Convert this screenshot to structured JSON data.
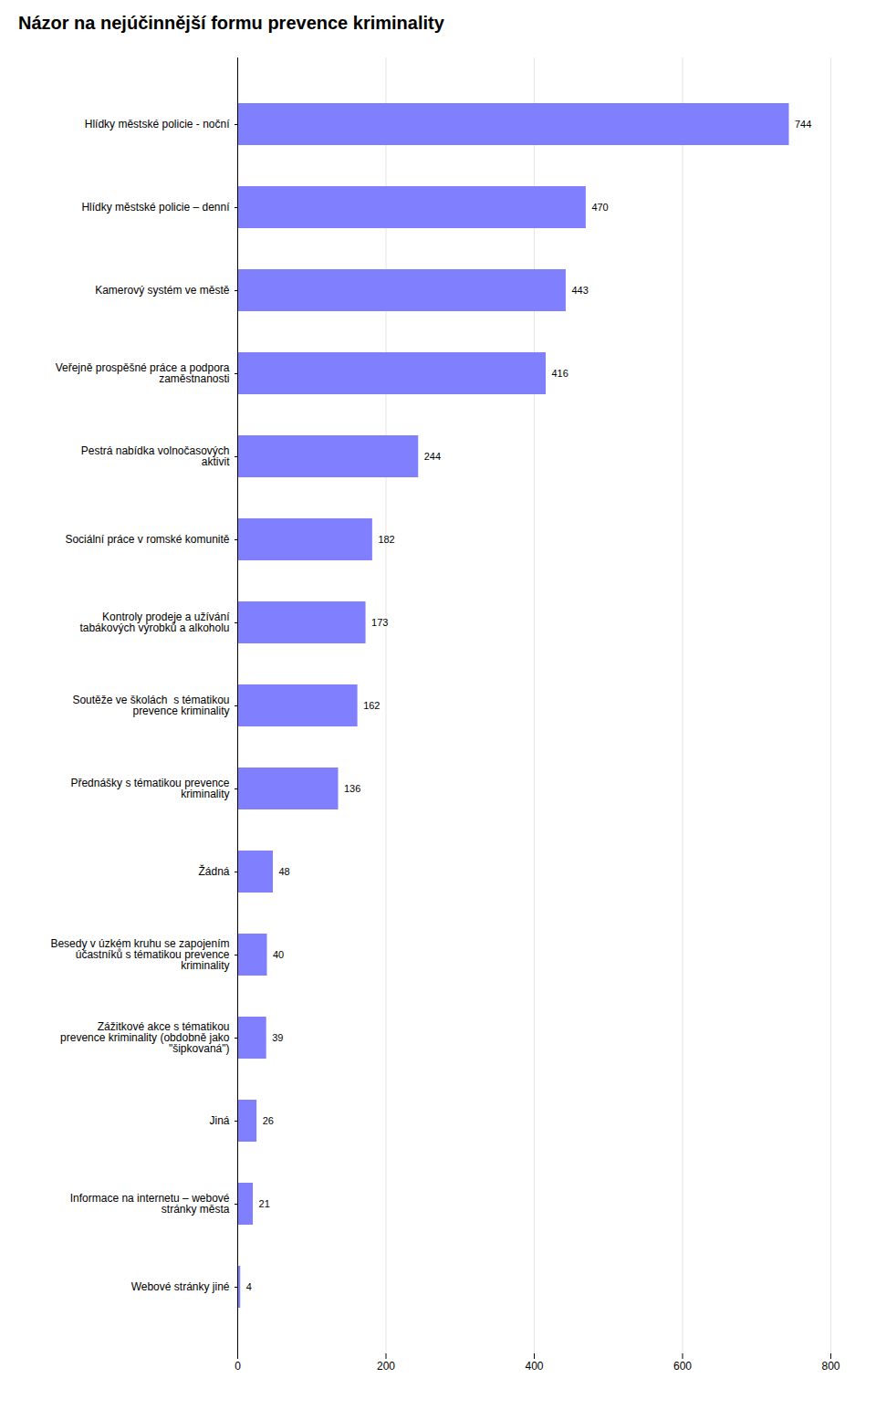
{
  "chart_data": {
    "type": "bar",
    "orientation": "horizontal",
    "title": "Názor na nejúčinnější formu prevence kriminality",
    "categories": [
      "Hlídky městské policie - noční",
      "Hlídky městské policie – denní",
      "Kamerový systém ve městě",
      "Veřejně prospěšné práce a podpora\nzaměstnanosti",
      "Pestrá nabídka volnočasových\naktivit",
      "Sociální práce v romské komunitě",
      "Kontroly prodeje a užívání\ntabákových výrobků a alkoholu",
      "Soutěže ve školách  s tématikou\nprevence kriminality",
      "Přednášky s tématikou prevence\nkriminality",
      "Žádná",
      "Besedy v úzkém kruhu se zapojením\núčastníků s tématikou prevence\nkriminality",
      "Zážitkové akce s tématikou\nprevence kriminality (obdobně jako\n\"šipkovaná\")",
      "Jiná",
      "Informace na internetu – webové\nstránky města",
      "Webové stránky jiné"
    ],
    "values": [
      744,
      470,
      443,
      416,
      244,
      182,
      173,
      162,
      136,
      48,
      40,
      39,
      26,
      21,
      4
    ],
    "color": "#8080ff",
    "xlim": [
      0,
      800
    ],
    "xticks": [
      0,
      200,
      400,
      600,
      800
    ],
    "grid": true,
    "data_labels": true
  }
}
